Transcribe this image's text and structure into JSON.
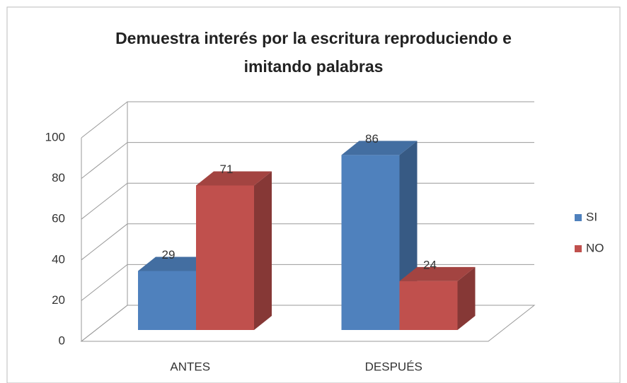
{
  "chart_data": {
    "type": "bar3d",
    "title": "Demuestra interés por la escritura reproduciendo e imitando palabras",
    "categories": [
      "ANTES",
      "DESPUÉS"
    ],
    "series": [
      {
        "name": "SI",
        "color": "#4f81bd",
        "values": [
          29,
          86
        ]
      },
      {
        "name": "NO",
        "color": "#c0504d",
        "values": [
          71,
          24
        ]
      }
    ],
    "ylim": [
      0,
      100
    ],
    "yticks": [
      0,
      20,
      40,
      60,
      80,
      100
    ],
    "grid": true,
    "legend": "right"
  }
}
